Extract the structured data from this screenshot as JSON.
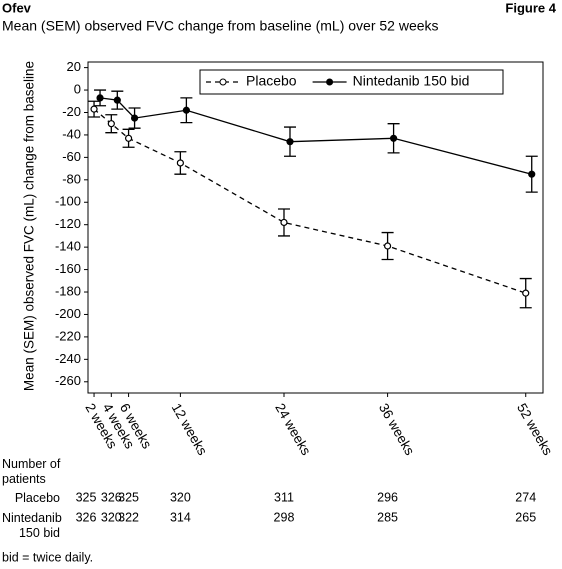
{
  "header": {
    "brand": "Ofev",
    "figure": "Figure 4"
  },
  "chart_data": {
    "type": "line",
    "title": "Mean (SEM) observed FVC change from baseline (mL) over 52 weeks",
    "y_label": "Mean (SEM) observed FVC (mL) change from baseline",
    "x": [
      2,
      4,
      6,
      12,
      24,
      36,
      52
    ],
    "xlim": [
      1.3,
      54
    ],
    "ylim": [
      -270,
      25
    ],
    "xticks": [
      {
        "value": 2,
        "label": "2 weeks"
      },
      {
        "value": 4,
        "label": "4 weeks"
      },
      {
        "value": 6,
        "label": "6 weeks"
      },
      {
        "value": 12,
        "label": "12 weeks"
      },
      {
        "value": 24,
        "label": "24 weeks"
      },
      {
        "value": 36,
        "label": "36 weeks"
      },
      {
        "value": 52,
        "label": "52 weeks"
      }
    ],
    "yticks": [
      20,
      0,
      -20,
      -40,
      -60,
      -80,
      -100,
      -120,
      -140,
      -160,
      -180,
      -200,
      -220,
      -240,
      -260
    ],
    "legend": "upper right",
    "series": [
      {
        "name": "Placebo",
        "color": "#000000",
        "line_style": "dashed",
        "marker": "open",
        "values": [
          -17,
          -30,
          -43,
          -65,
          -118,
          -139,
          -181
        ],
        "errors": [
          7,
          8,
          8,
          10,
          12,
          12,
          13
        ]
      },
      {
        "name": "Nintedanib 150 bid",
        "color": "#000000",
        "line_style": "solid",
        "marker": "filled",
        "values": [
          -7,
          -9,
          -25,
          -18,
          -46,
          -43,
          -75
        ],
        "errors": [
          7,
          8,
          9,
          11,
          13,
          13,
          16
        ]
      }
    ],
    "risk_table": {
      "title": "Number of patients",
      "rows": [
        {
          "name": "Placebo",
          "values": [
            325,
            326,
            325,
            320,
            311,
            296,
            274
          ]
        },
        {
          "name": "Nintedanib 150 bid",
          "values": [
            326,
            320,
            322,
            314,
            298,
            285,
            265
          ]
        }
      ]
    }
  },
  "footnote": "bid = twice daily."
}
